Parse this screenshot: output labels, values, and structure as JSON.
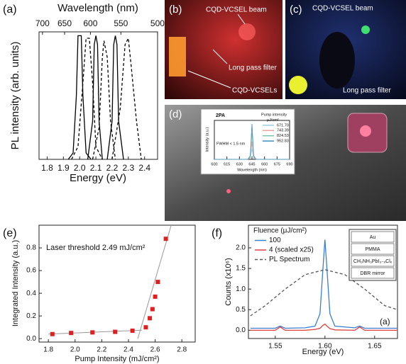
{
  "chart_data": [
    {
      "type": "line",
      "panel_label": "(a)",
      "x_label": "Energy (eV)",
      "x2_label": "Wavelength (nm)",
      "y_label": "PL intensity (arb. units)",
      "xlim": [
        1.75,
        2.48
      ],
      "xticks": [
        1.8,
        1.9,
        {
          "value": 2.0,
          "label": "2.0"
        },
        2.1,
        2.2,
        2.3,
        2.4
      ],
      "x2ticks": [
        700,
        650,
        600,
        550,
        500
      ],
      "ylim": [
        0,
        1
      ],
      "series": [
        {
          "color": "#000000",
          "dashed": false,
          "x": [
            1.93,
            1.96,
            1.98,
            1.99,
            2.01,
            2.02,
            2.04,
            2.07
          ],
          "values": [
            0,
            0.05,
            0.5,
            0.97,
            0.97,
            0.5,
            0.05,
            0
          ]
        },
        {
          "color": "#000000",
          "dashed": true,
          "x": [
            1.95,
            1.99,
            2.02,
            2.04,
            2.06,
            2.08,
            2.1,
            2.14
          ],
          "values": [
            0,
            0.1,
            0.6,
            0.95,
            0.95,
            0.6,
            0.1,
            0
          ]
        },
        {
          "color": "#000000",
          "dashed": false,
          "x": [
            2.05,
            2.08,
            2.09,
            2.1,
            2.11,
            2.12,
            2.14
          ],
          "values": [
            0,
            0.3,
            0.9,
            0.97,
            0.9,
            0.3,
            0
          ]
        },
        {
          "color": "#000000",
          "dashed": true,
          "x": [
            2.08,
            2.12,
            2.14,
            2.15,
            2.17,
            2.19,
            2.22
          ],
          "values": [
            0,
            0.25,
            0.8,
            0.93,
            0.8,
            0.3,
            0
          ]
        },
        {
          "color": "#000000",
          "dashed": false,
          "x": [
            2.17,
            2.2,
            2.21,
            2.22,
            2.23,
            2.24,
            2.27
          ],
          "values": [
            0,
            0.3,
            0.9,
            0.97,
            0.9,
            0.3,
            0
          ]
        },
        {
          "color": "#000000",
          "dashed": true,
          "x": [
            2.2,
            2.25,
            2.28,
            2.3,
            2.32,
            2.35,
            2.38
          ],
          "values": [
            0,
            0.4,
            0.9,
            0.95,
            0.7,
            0.3,
            0
          ]
        }
      ]
    },
    {
      "type": "line",
      "title": "2PA",
      "x_label": "Wavelength (nm)",
      "y_label": "Intensity (a.u.)",
      "annotation": "FWHM < 1.5 nm",
      "legend_title": "Pump intensity",
      "legend_unit": "μJ/cm²",
      "xlim": [
        600,
        690
      ],
      "xticks": [
        600,
        615,
        630,
        645,
        660,
        675,
        690
      ],
      "ylim": [
        0,
        1.1
      ],
      "series": [
        {
          "name": "671.70",
          "color": "#9ad0e0",
          "x": [
            600,
            640,
            643,
            645,
            647,
            650,
            690
          ],
          "values": [
            0,
            0,
            0.03,
            0.3,
            0.03,
            0,
            0
          ]
        },
        {
          "name": "743.39",
          "color": "#f0a0a0",
          "x": [
            600,
            640,
            643,
            645,
            647,
            650,
            690
          ],
          "values": [
            0,
            0,
            0.05,
            0.5,
            0.05,
            0,
            0
          ]
        },
        {
          "name": "824.53",
          "color": "#7cc4a8",
          "x": [
            600,
            640,
            643,
            645,
            647,
            650,
            690
          ],
          "values": [
            0,
            0,
            0.07,
            0.75,
            0.07,
            0,
            0
          ]
        },
        {
          "name": "952.83",
          "color": "#3a8fc0",
          "x": [
            600,
            640,
            643,
            645,
            647,
            650,
            690
          ],
          "values": [
            0,
            0,
            0.1,
            1.0,
            0.1,
            0,
            0
          ]
        }
      ]
    },
    {
      "type": "scatter",
      "panel_label": "(e)",
      "x_label": "Pump Intensity (mJ/cm²)",
      "y_label": "Integrated Intensity (a.u.)",
      "annotation": "Laser threshold 2.49 mJ/cm²",
      "xlim": [
        1.73,
        2.9
      ],
      "xticks": [
        1.8,
        {
          "value": 2.0,
          "label": "2.0"
        },
        2.2,
        2.4,
        2.6,
        2.8
      ],
      "ylim": [
        -0.03,
        1.0
      ],
      "yticks": [
        {
          "value": 0,
          "label": "0.0"
        },
        0.2,
        0.4,
        0.6,
        0.8
      ],
      "color": "#e02020",
      "x": [
        1.83,
        1.97,
        2.13,
        2.3,
        2.43,
        2.53,
        2.56,
        2.58,
        2.6,
        2.62,
        2.68
      ],
      "values": [
        0.04,
        0.05,
        0.055,
        0.06,
        0.07,
        0.1,
        0.18,
        0.26,
        0.37,
        0.5,
        0.88
      ],
      "fit_color": "#999999",
      "fits": [
        {
          "x": [
            1.8,
            2.5
          ],
          "values": [
            0.04,
            0.075
          ]
        },
        {
          "x": [
            2.47,
            2.72
          ],
          "values": [
            0.0,
            1.0
          ]
        }
      ]
    },
    {
      "type": "line",
      "panel_label": "(f)",
      "x_label": "Energy (eV)",
      "y_label": "Counts (x10⁶)",
      "annotation": "(a)",
      "legend_title": "Fluence (μJ/cm²)",
      "layer_stack": [
        "Au",
        "PMMA",
        "CH₃NH₃PbI₃₋ₓClₓ",
        "DBR mirror"
      ],
      "xlim": [
        1.523,
        1.673
      ],
      "xticks": [
        1.55,
        {
          "value": 1.6,
          "label": "1.60"
        },
        1.65
      ],
      "ylim": [
        -0.2,
        2.55
      ],
      "yticks": [
        {
          "value": 0,
          "label": "0.0"
        },
        0.5,
        {
          "value": 1,
          "label": "1.0"
        },
        1.5,
        {
          "value": 2,
          "label": "2.0"
        }
      ],
      "series": [
        {
          "name": "100",
          "color": "#3b7fd0",
          "dashed": false,
          "x": [
            1.525,
            1.55,
            1.555,
            1.56,
            1.58,
            1.59,
            1.595,
            1.598,
            1.6,
            1.602,
            1.605,
            1.61,
            1.63,
            1.635,
            1.64,
            1.673
          ],
          "values": [
            0.05,
            0.05,
            0.1,
            0.05,
            0.06,
            0.1,
            0.4,
            1.5,
            2.2,
            1.5,
            0.4,
            0.1,
            0.06,
            0.1,
            0.05,
            0.05
          ]
        },
        {
          "name": "4  (scaled x25)",
          "color": "#e04040",
          "dashed": false,
          "x": [
            1.525,
            1.55,
            1.555,
            1.56,
            1.58,
            1.59,
            1.595,
            1.598,
            1.6,
            1.602,
            1.605,
            1.61,
            1.63,
            1.635,
            1.64,
            1.673
          ],
          "values": [
            0,
            0,
            0.08,
            0,
            0,
            0.02,
            0.05,
            0.12,
            0.15,
            0.1,
            0.04,
            0.01,
            0,
            0.08,
            0,
            0
          ]
        },
        {
          "name": "PL Spectrum",
          "color": "#555555",
          "dashed": true,
          "x": [
            1.525,
            1.54,
            1.56,
            1.58,
            1.6,
            1.62,
            1.64,
            1.66,
            1.673
          ],
          "values": [
            0.35,
            0.6,
            1.0,
            1.35,
            1.47,
            1.35,
            1.0,
            0.6,
            0.5
          ]
        }
      ]
    }
  ],
  "photos": {
    "b": {
      "panel_label": "(b)",
      "annotations": [
        "CQD-VCSEL beam",
        "Long pass filter",
        "CQD-VCSELs"
      ]
    },
    "c": {
      "panel_label": "(c)",
      "annotations": [
        "CQD-VCSEL beam",
        "Long pass filter"
      ]
    },
    "d": {
      "panel_label": "(d)"
    }
  }
}
